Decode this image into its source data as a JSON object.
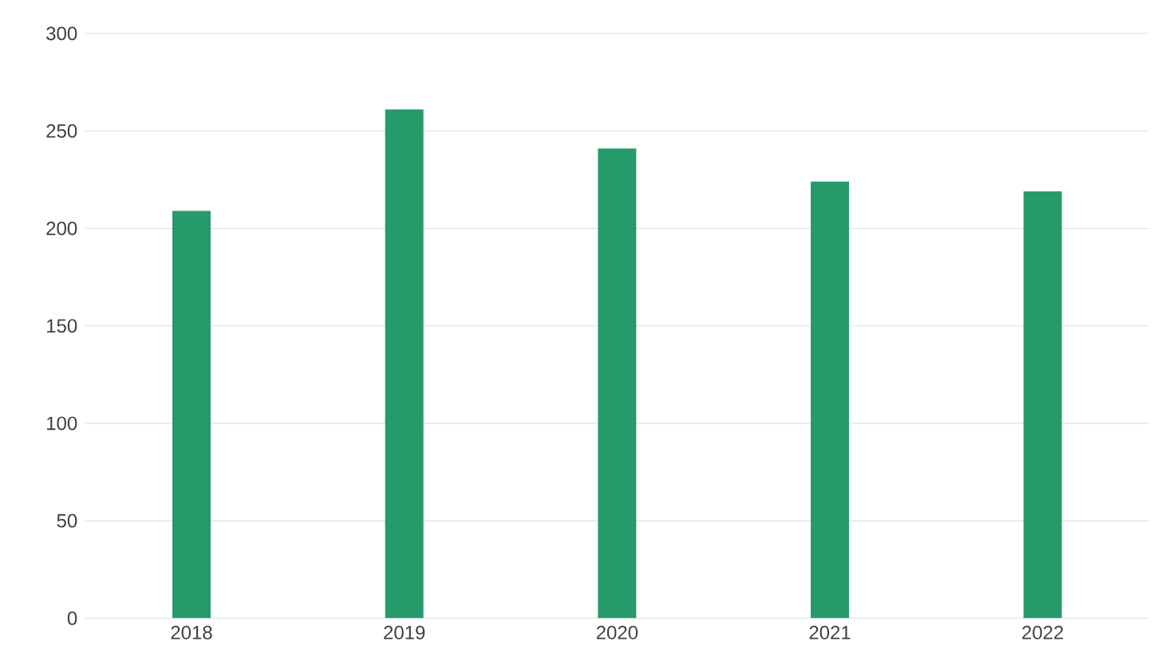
{
  "chart_data": {
    "type": "bar",
    "categories": [
      "2018",
      "2019",
      "2020",
      "2021",
      "2022"
    ],
    "values": [
      209,
      261,
      241,
      224,
      219
    ],
    "color": "#259b6c",
    "ylim": [
      0,
      300
    ],
    "yticks": [
      0,
      50,
      100,
      150,
      200,
      250,
      300
    ],
    "grid": "y"
  }
}
